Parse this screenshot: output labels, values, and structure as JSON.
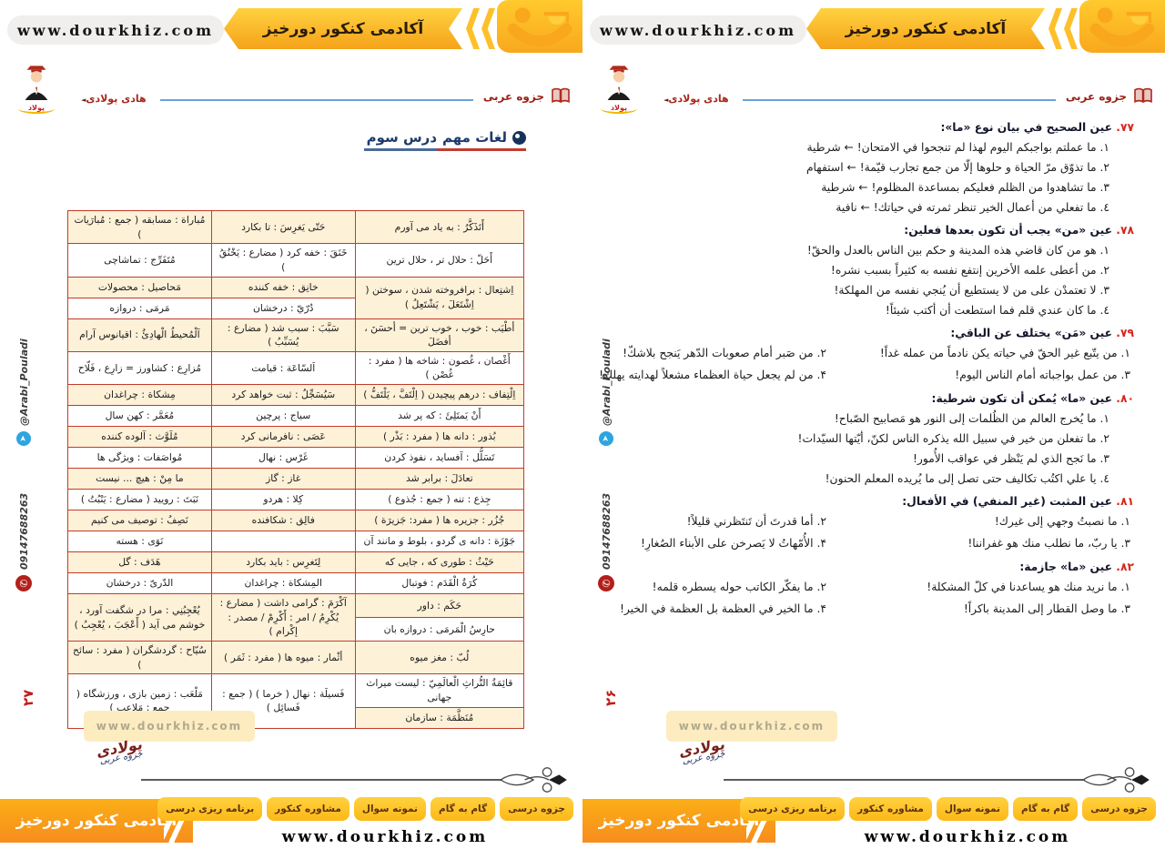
{
  "banner": {
    "url": "www.dourkhiz.com",
    "academy": "آکادمی کنکور دورخیز"
  },
  "page_header": {
    "booklet": "جزوه عربی",
    "author": "هادی پولادی",
    "badge": "پولاد"
  },
  "sidebar": {
    "telegram": "@Arabi_Pouladi",
    "phone": "09147688263"
  },
  "left_page": {
    "page_number": "۲۷",
    "title_main": "لغات مهم",
    "title_accent": "درس سوم",
    "table_rows": [
      [
        {
          "t": "أَتَذَكَّرُ : به یاد می آورم",
          "bg": "b"
        },
        {
          "t": "حَتّی یَغرِسَ : تا بکارد",
          "bg": "b"
        },
        {
          "t": "مُباراة : مسابقه ( جمع : مُبارَیات )",
          "bg": "b"
        }
      ],
      [
        {
          "t": "أَحَلّ : حلال تر ، حلال ترین",
          "bg": "w"
        },
        {
          "t": "خَنَقَ : خفه کرد ( مضارع : یَخْنُقُ )",
          "bg": "w"
        },
        {
          "t": "مُتَفَرِّج : تماشاچی",
          "bg": "w"
        }
      ],
      [
        {
          "t": "اِشتِعال : برافروخته شدن ، سوختن ( اِشْتَعَلَ ، یَشْتَعِلُ )",
          "rs": 2,
          "bg": "b"
        },
        {
          "t": "خانِق : خفه کننده",
          "bg": "b"
        },
        {
          "t": "مَحاصیل : محصولات",
          "bg": "b"
        }
      ],
      [
        {
          "t": "دُرّيّ : درخشان",
          "bg": "w"
        },
        {
          "t": "مَرمَی : دروازه",
          "bg": "w"
        }
      ],
      [
        {
          "t": "أطْیَب : خوب ، خوب ترین = أحسَنَ ، أفضَلَ",
          "bg": "b"
        },
        {
          "t": "سَبَّبَ : سبب شد ( مضارع : یُسَبِّبُ )",
          "bg": "b"
        },
        {
          "t": "اَلْمُحیطُ الْهادِئُ : اقیانوس آرام",
          "bg": "b"
        }
      ],
      [
        {
          "t": "أَغْصان ، غُصون : شاخه ها ( مفرد : غُصْن )",
          "bg": "w"
        },
        {
          "t": "اَلسّاعَة : قیامت",
          "bg": "w"
        },
        {
          "t": "مُزارِع : کشاورز = زارِع ، فَلّاح",
          "bg": "w"
        }
      ],
      [
        {
          "t": "اِلْتِفاف : درهم پیچیدن ( اِلْتَفَّ ، یَلْتَفُّ )",
          "bg": "b"
        },
        {
          "t": "سَیُسَجِّلُ : ثبت خواهد کرد",
          "bg": "b"
        },
        {
          "t": "مِشکاة : چراغدان",
          "bg": "b"
        }
      ],
      [
        {
          "t": "أَنْ یَمتَلِئَ : که پر شد",
          "bg": "w"
        },
        {
          "t": "سیاج : پرچین",
          "bg": "w"
        },
        {
          "t": "مُعَمَّر : کهن سال",
          "bg": "w"
        }
      ],
      [
        {
          "t": "بُذور : دانه ها ( مفرد : بَذْر )",
          "bg": "b"
        },
        {
          "t": "عَصَی : نافرمانی کرد",
          "bg": "b"
        },
        {
          "t": "مُلَوَّث : آلوده کننده",
          "bg": "b"
        }
      ],
      [
        {
          "t": "تَسَلُّل : آفساید ، نفوذ کردن",
          "bg": "w"
        },
        {
          "t": "غَرْس : نهال",
          "bg": "w"
        },
        {
          "t": "مُواصَفات : ویژگی ها",
          "bg": "w"
        }
      ],
      [
        {
          "t": "تعادَلَ : برابر شد",
          "bg": "b"
        },
        {
          "t": "غاز : گاز",
          "bg": "b"
        },
        {
          "t": "ما مِنْ : هیچ ... نیست",
          "bg": "b"
        }
      ],
      [
        {
          "t": "جِذع : تنه ( جمع : جُذوع )",
          "bg": "w"
        },
        {
          "t": "کِلا : هردو",
          "bg": "w"
        },
        {
          "t": "نَبَتَ : رویید ( مضارع : یَنْبُتُ )",
          "bg": "w"
        }
      ],
      [
        {
          "t": "جُزُر : جزیره ها ( مفرد: جَزیرَة )",
          "bg": "b"
        },
        {
          "t": "فالِق : شکافنده",
          "bg": "b"
        },
        {
          "t": "نَصِفُ : توصیف می کنیم",
          "bg": "b"
        }
      ],
      [
        {
          "t": "جَوْزَة : دانه ی گردو ، بلوط و مانند آن",
          "bg": "w"
        },
        {
          "t": "",
          "bg": "w"
        },
        {
          "t": "نَوَی : هسته",
          "bg": "w"
        }
      ],
      [
        {
          "t": "حَیْثُ : طوری که ، جایی که",
          "bg": "b"
        },
        {
          "t": "لِتَغرِس : باید بکارد",
          "bg": "b"
        },
        {
          "t": "هَدَف : گل",
          "bg": "b"
        }
      ],
      [
        {
          "t": "کُرَةُ الْقَدَم : فوتبال",
          "bg": "w"
        },
        {
          "t": "المِشکاة : چراغدان",
          "bg": "w"
        },
        {
          "t": "الدّریّ : درخشان",
          "bg": "w"
        }
      ],
      [
        {
          "t": "حَکَم : داور",
          "bg": "b"
        },
        {
          "t": "آکْرَمَ : گرامی داشت ( مضارع : یُکْرِمُ / امر : أَکْرِمْ / مصدر : إکْرام )",
          "rs": 2,
          "bg": "b"
        },
        {
          "t": "یُعْجِبُنِي : مرا در شگفت آورد ، خوشم می آید ( أَعْجَبَ ، یُعْجِبُ )",
          "rs": 2,
          "bg": "b"
        }
      ],
      [
        {
          "t": "حارِسُ الْمَرمَی : دروازه بان",
          "bg": "w"
        }
      ],
      [
        {
          "t": "لُبّ : مغز میوه",
          "bg": "b"
        },
        {
          "t": "أثْمار : میوه ها ( مفرد : ثَمَر )",
          "bg": "b"
        },
        {
          "t": "سُیّاح : گردشگران ( مفرد : سائح )",
          "bg": "b"
        }
      ],
      [
        {
          "t": "قائِمَةُ التُّراثِ الْعالَمِيّ : لیست میراث جهانی",
          "bg": "w"
        },
        {
          "t": "فَسیلَة : نهال ( خرما ) ( جمع : فَسائِل )",
          "rs": 2,
          "bg": "w"
        },
        {
          "t": "مَلْعَب : زمین بازی ، ورزشگاه ( جمع : مَلاعِب )",
          "rs": 2,
          "bg": "w"
        }
      ],
      [
        {
          "t": "مُنَظَّمَة : سازمان",
          "bg": "b"
        }
      ]
    ]
  },
  "right_page": {
    "page_number": "۲۶",
    "questions": [
      {
        "num": "٧٧.",
        "stem": "عين الصحيح في بيان نوع «ما»:",
        "layout": "list",
        "options": [
          "١. ما عملتم بواجبكم اليوم لهذا لم تنجحوا في الامتحان! ← شرطية",
          "٢. ما تذوّق مرّ الحياة و حلوها إلّا من جمع تجارب قيّمة! ← استفهام",
          "٣. ما تشاهدوا من الظلم فعليكم بمساعدة المظلوم! ← شرطية",
          "٤. ما تفعلي من أعمال الخير تنظر ثمرته في حياتك! ← نافية"
        ]
      },
      {
        "num": "٧٨.",
        "stem": "عين «من» يجب أن تكون بعدها فعلين:",
        "layout": "list",
        "options": [
          "١. هو من كان قاضي هذه المدينة و حكم بين الناس بالعدل والحقّ!",
          "٢. من أعطى علمه الأخرين إنتفع نفسه به كثيراً بسبب نشره!",
          "٣. لا تعتمدْن على من لا يستطيع أن يُنجي نفسه من المهلكة!",
          "٤. ما كان عندي قلم فما استطعت أن أكتب شيئاً!"
        ]
      },
      {
        "num": "٧٩.",
        "stem": "عين «مَن» يختلف عن الباقي:",
        "layout": "grid",
        "options": [
          "١. من يتّبع غير الحقّ في حياته يكن نادماً من عمله غداً!",
          "٢. من صَبر أمام صعوبات الدّهر يَنجح بلاشكّ!",
          "٣. من عمل بواجباته أمام الناس اليوم!",
          "۴. من لم يجعل حياة العظماء مشعلاً لهدايته يهلك!"
        ]
      },
      {
        "num": "٨٠.",
        "stem": "عين «ما» يُمكن أن تكون شرطية:",
        "layout": "list",
        "options": [
          "١. ما يُخرج العالم من الظُلمات إلى النور هو مَصابيح الصّباح!",
          "٢. ما تفعلن من خير في سبيل الله يذكره الناس لكنّ، أيّتها السيّدات!",
          "٣. ما نَجح الذي لم يَنْظر في عواقب الأُمور!",
          "٤. يا علي اكتُب تكاليف حتى تصل إلى ما يُريده المعلم الحنون!"
        ]
      },
      {
        "num": "٨١.",
        "stem": "عين المثبت (غير المنفي) في الأفعال:",
        "layout": "grid",
        "options": [
          "١. ما نصبتُ وجهي إلى غيرك!",
          "٢. أما قدرتَ أن تَنتَظرني قليلاً!",
          "٣. يا ربّ، ما نطلب منك هو غفراننا!",
          "۴. الأُمّهاتُ لا يَصرخن على الأبناء الصُغارِ!"
        ]
      },
      {
        "num": "٨٢.",
        "stem": "عين «ما» جازمة:",
        "layout": "grid",
        "options": [
          "١. ما نريد منك هو يساعدنا في كلّ المشكلة!",
          "٢. ما يفكّر الكاتب حوله يسطره قلمه!",
          "٣. ما وصل القطار إلى المدينة باكراً!",
          "۴. ما الخير في العظمة بل العظمة في الخير!"
        ]
      }
    ]
  },
  "footer": {
    "watermark": "www.dourkhiz.com",
    "signature_1": "پولادی",
    "signature_2": "جزوه عربی",
    "brand": "آکادمی کنکور دورخیز",
    "tabs": [
      "جزوه درسی",
      "گام به گام",
      "نمونه سوال",
      "مشاوره کنکور",
      "برنامه ریزی درسی"
    ],
    "url": "www.dourkhiz.com"
  }
}
